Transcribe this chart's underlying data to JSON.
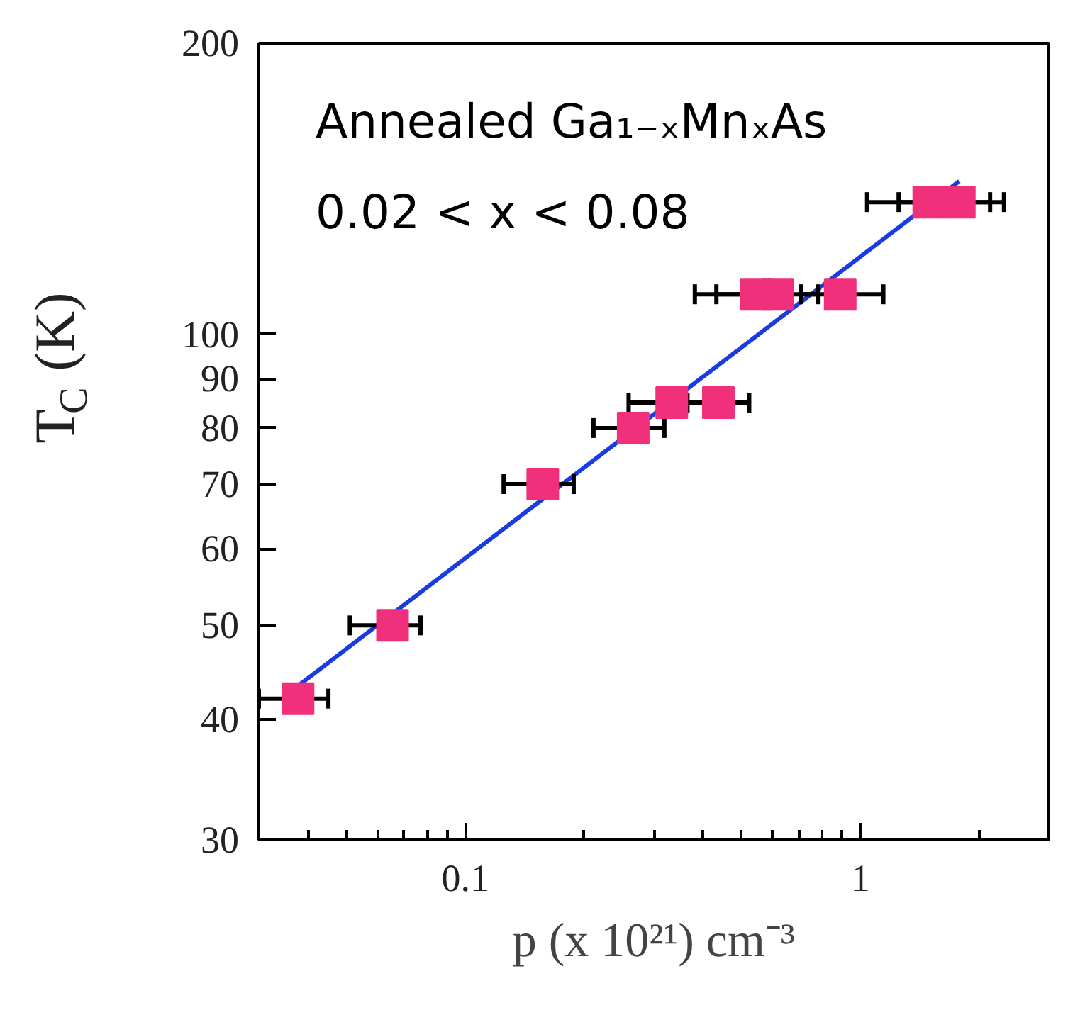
{
  "chart_data": {
    "type": "scatter",
    "xlabel": "p (x 10²¹) cm⁻³",
    "ylabel": "T$_{C}$ (K)",
    "log": "xy",
    "xlim": [
      0.03,
      3
    ],
    "ylim": [
      30,
      200
    ],
    "xticks": [
      {
        "value": 0.04,
        "label": null
      },
      {
        "value": 0.05,
        "label": null
      },
      {
        "value": 0.06,
        "label": null
      },
      {
        "value": 0.07,
        "label": null
      },
      {
        "value": 0.08,
        "label": null
      },
      {
        "value": 0.09,
        "label": null
      },
      0.1,
      {
        "value": 0.2,
        "label": null
      },
      {
        "value": 0.3,
        "label": null
      },
      {
        "value": 0.4,
        "label": null
      },
      {
        "value": 0.5,
        "label": null
      },
      {
        "value": 0.6,
        "label": null
      },
      {
        "value": 0.7,
        "label": null
      },
      {
        "value": 0.8,
        "label": null
      },
      {
        "value": 0.9,
        "label": null
      },
      1,
      {
        "value": 2,
        "label": null
      }
    ],
    "yticks": [
      30,
      40,
      50,
      60,
      70,
      80,
      90,
      100,
      200
    ],
    "grid": false,
    "annotations": [
      "Annealed Ga₁₋ₓMnₓAs",
      "0.02 < x < 0.08"
    ],
    "series": [
      {
        "color": "#f0307a",
        "marker": "square",
        "x": [
          0.0377,
          0.0654,
          0.157,
          0.266,
          0.333,
          0.437,
          0.545,
          0.618,
          0.889,
          1.49,
          1.78
        ],
        "values": [
          42,
          50,
          70,
          80,
          85,
          85,
          110,
          110,
          110,
          137,
          137
        ],
        "xerrors": [
          [
            0.03,
            0.045
          ],
          [
            0.051,
            0.077
          ],
          [
            0.125,
            0.188
          ],
          [
            0.211,
            0.319
          ],
          [
            0.259,
            0.333
          ],
          [
            0.365,
            0.523
          ],
          [
            0.381,
            0.78
          ],
          [
            0.432,
            0.618
          ],
          [
            0.707,
            1.143
          ],
          [
            1.04,
            2.13
          ],
          [
            1.25,
            2.31
          ]
        ]
      },
      {
        "type": "line",
        "color": "#1a3be0",
        "x": [
          0.0377,
          1.78
        ],
        "values": [
          43.3,
          144
        ]
      }
    ]
  }
}
